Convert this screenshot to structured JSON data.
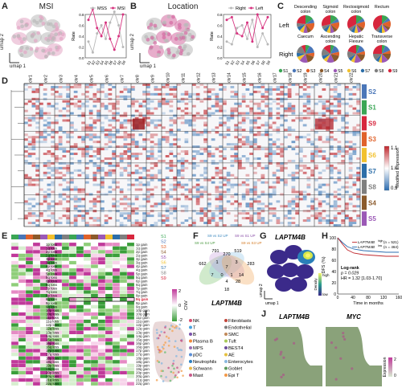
{
  "labels": {
    "A": "A",
    "B": "B",
    "C": "C",
    "D": "D",
    "E": "E",
    "F": "F",
    "G": "G",
    "H": "H",
    "I": "I",
    "J": "J"
  },
  "panelA": {
    "title": "MSI",
    "umap_x": "umap 1",
    "umap_y": "umap 2",
    "legend": [
      "MSS",
      "MSI"
    ],
    "ylabel": "Rate",
    "yticks": [
      "0.0",
      "0.2",
      "0.4",
      "0.6",
      "0.8"
    ],
    "categories": [
      "S1",
      "S2",
      "S3",
      "S4",
      "S5",
      "S6",
      "S7",
      "S8",
      "S9"
    ]
  },
  "panelB": {
    "title": "Location",
    "umap_x": "umap 1",
    "umap_y": "umap 2",
    "legend": [
      "Right",
      "Left"
    ],
    "ylabel": "Rate",
    "yticks": [
      "0.0",
      "0.2",
      "0.4",
      "0.6",
      "0.8"
    ],
    "categories": [
      "S1",
      "S2",
      "S3",
      "S4",
      "S5",
      "S6",
      "S7",
      "S8",
      "S9"
    ]
  },
  "panelC": {
    "rows": [
      "Left",
      "Right"
    ],
    "left_titles": [
      "Descending colon",
      "Sigmoid colon",
      "Rectosigmoid colon",
      "Rectum"
    ],
    "right_titles": [
      "Caecum",
      "Ascending colon",
      "Hepatic Flexure",
      "Transverse colon"
    ],
    "legend": [
      "S1",
      "S2",
      "S3",
      "S4",
      "S5",
      "S6",
      "S7",
      "S8",
      "S9"
    ]
  },
  "panelD": {
    "chroms": [
      "chr1",
      "chr2",
      "chr3",
      "chr4",
      "chr5",
      "chr6",
      "chr7",
      "chr8",
      "chr9",
      "chr10",
      "chr11",
      "chr12",
      "chr13",
      "chr14",
      "chr15",
      "chr16",
      "chr17",
      "chr18",
      "chr19",
      "chr20",
      "chr21",
      "chr22"
    ],
    "groups": [
      "S2",
      "S1",
      "S9",
      "S3",
      "S6",
      "S7",
      "S8",
      "S4",
      "S5"
    ],
    "colorbar_title": "Modified Expression",
    "colorbar_ticks": [
      "1.1",
      "1.0",
      "0.9"
    ]
  },
  "panelE": {
    "col_labels": [
      "S1",
      "S2",
      "S3",
      "S4",
      "S5",
      "S6",
      "S7",
      "S8",
      "S9"
    ],
    "loss_rows": [
      "1p loss",
      "1q loss",
      "2p loss",
      "2q loss",
      "3p loss",
      "3q loss",
      "4p loss",
      "4q loss",
      "5p loss",
      "5q loss",
      "6p loss",
      "6q loss",
      "7p loss",
      "7q loss",
      "8p loss",
      "8q loss",
      "9p loss",
      "9q loss",
      "10p loss",
      "10q loss",
      "11p loss",
      "11q loss",
      "12p loss",
      "12q loss",
      "13q loss",
      "14q loss",
      "15q loss",
      "16p loss",
      "16q loss",
      "17p loss",
      "17q loss",
      "18p loss",
      "18q loss",
      "19p loss",
      "19q loss",
      "20p loss",
      "20q loss",
      "21q loss",
      "22q loss"
    ],
    "gain_rows": [
      "1p gain",
      "1q gain",
      "2p gain",
      "2q gain",
      "3p gain",
      "3q gain",
      "4p gain",
      "4q gain",
      "5p gain",
      "5q gain",
      "6p gain",
      "6q gain",
      "7p gain",
      "7q gain",
      "8p gain",
      "8q gain",
      "9p gain",
      "9q gain",
      "10p gain",
      "10q gain",
      "11p gain",
      "11q gain",
      "12p gain",
      "12q gain",
      "13q gain",
      "14q gain",
      "15q gain",
      "16p gain",
      "16q gain",
      "17p gain",
      "17q gain",
      "18p gain",
      "18q gain",
      "19p gain",
      "19q gain",
      "20p gain",
      "20q gain",
      "21q gain",
      "22q gain"
    ],
    "highlight_row": "8q gain",
    "colorbar_title": "CNV",
    "colorbar_ticks": [
      "2",
      "0",
      "-2"
    ]
  },
  "panelF": {
    "set_labels": [
      "S9 vs S4 UP",
      "S9 vs S2 UP",
      "S9 vs S1 UP",
      "S9 vs S3 UP"
    ],
    "counts": [
      "791",
      "519",
      "662",
      "270",
      "283",
      "1",
      "7",
      "3",
      "0",
      "1",
      "4",
      "18",
      "28",
      "7",
      "14"
    ],
    "gene": "LAPTM4B"
  },
  "panelG": {
    "title": "LAPTM4B",
    "umap_x": "umap 1",
    "umap_y": "umap 2",
    "cbar_title": "Density",
    "cbar_high": "high",
    "cbar_low": "low"
  },
  "panelH": {
    "legend": [
      "LAPTM4B",
      "LAPTM4B"
    ],
    "legend_sup": [
      "high",
      "low"
    ],
    "legend_n": [
      "(n = 521)",
      "(n = 464)"
    ],
    "ylabel": "DFS (%)",
    "xlabel": "Time in months",
    "yticks": [
      "100",
      "80",
      "60",
      "40",
      "20",
      "0"
    ],
    "xticks": [
      "0",
      "40",
      "80",
      "120",
      "160"
    ],
    "stats": [
      "Log-rank",
      "p = 0.029",
      "HR = 1.32 [1.03-1.70]"
    ]
  },
  "panelI": {
    "legend_left": [
      "NK",
      "T",
      "B",
      "Plasma B",
      "MPS",
      "pDC",
      "Neutrophils",
      "Schwann",
      "Mast"
    ],
    "legend_right": [
      "Fibroblasts",
      "Endothelial",
      "SMC",
      "Tuft",
      "BEST4",
      "AE",
      "Enterocytes",
      "Goblet",
      "Epi T"
    ]
  },
  "panelJ": {
    "titles": [
      "LAPTM4B",
      "MYC"
    ],
    "cbar_title": "Expression",
    "cbar_ticks": [
      "2",
      "0"
    ]
  },
  "chart_data": [
    {
      "type": "line",
      "series": [
        {
          "name": "MSS",
          "values": [
            0.3,
            0.1,
            0.45,
            0.6,
            0.35,
            0.65,
            0.85,
            0.6,
            0.2
          ]
        },
        {
          "name": "MSI",
          "values": [
            0.7,
            0.9,
            0.55,
            0.4,
            0.65,
            0.35,
            0.15,
            0.4,
            0.8
          ]
        }
      ],
      "categories": [
        "S1",
        "S2",
        "S3",
        "S4",
        "S5",
        "S6",
        "S7",
        "S8",
        "S9"
      ],
      "ylabel": "Rate"
    },
    {
      "type": "line",
      "series": [
        {
          "name": "Right",
          "values": [
            0.3,
            0.25,
            0.55,
            0.6,
            0.35,
            0.7,
            0.2,
            0.45,
            0.25
          ]
        },
        {
          "name": "Left",
          "values": [
            0.7,
            0.75,
            0.45,
            0.4,
            0.65,
            0.3,
            0.8,
            0.55,
            0.75
          ]
        }
      ],
      "categories": [
        "S1",
        "S2",
        "S3",
        "S4",
        "S5",
        "S6",
        "S7",
        "S8",
        "S9"
      ],
      "ylabel": "Rate"
    }
  ],
  "colors": {
    "pink": "#d6337f",
    "gray": "#b8b8b8",
    "red": "#c0272d",
    "blue": "#2b6cb0",
    "green": "#7cc26d",
    "magenta": "#c0399a"
  },
  "cluster_colors": {
    "S1": "#3aa655",
    "S2": "#4a76b8",
    "S3": "#e0622b",
    "S4": "#8b5a2b",
    "S5": "#9b59b6",
    "S6": "#f2c12e",
    "S7": "#2c6ea8",
    "S8": "#7f7f7f",
    "S9": "#d7263d"
  }
}
